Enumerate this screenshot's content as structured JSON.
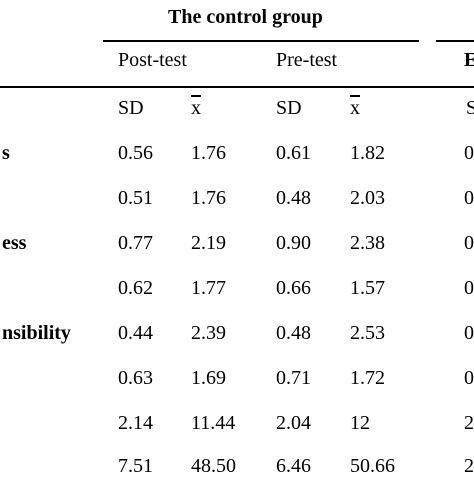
{
  "table": {
    "group_header": "The control group",
    "cut_group_header": "E",
    "post_test_label": "Post-test",
    "pre_test_label": "Pre-test",
    "cut_subheader": "S",
    "sd_label": "SD",
    "mean_label": "x",
    "rows": [
      {
        "label": "s",
        "post_sd": "0.56",
        "post_mean": "1.76",
        "pre_sd": "0.61",
        "pre_mean": "1.82",
        "cut": "0"
      },
      {
        "label": "",
        "post_sd": "0.51",
        "post_mean": "1.76",
        "pre_sd": "0.48",
        "pre_mean": "2.03",
        "cut": "0"
      },
      {
        "label": "ess",
        "post_sd": "0.77",
        "post_mean": "2.19",
        "pre_sd": "0.90",
        "pre_mean": "2.38",
        "cut": "0"
      },
      {
        "label": "",
        "post_sd": "0.62",
        "post_mean": "1.77",
        "pre_sd": "0.66",
        "pre_mean": "1.57",
        "cut": "0"
      },
      {
        "label": "nsibility",
        "post_sd": "0.44",
        "post_mean": "2.39",
        "pre_sd": "0.48",
        "pre_mean": "2.53",
        "cut": "0"
      },
      {
        "label": "",
        "post_sd": "0.63",
        "post_mean": "1.69",
        "pre_sd": "0.71",
        "pre_mean": "1.72",
        "cut": "0"
      },
      {
        "label": "",
        "post_sd": "2.14",
        "post_mean": "11.44",
        "pre_sd": "2.04",
        "pre_mean": "12",
        "cut": "2"
      },
      {
        "label": "",
        "post_sd": "7.51",
        "post_mean": "48.50",
        "pre_sd": "6.46",
        "pre_mean": "50.66",
        "cut": "2"
      }
    ]
  }
}
